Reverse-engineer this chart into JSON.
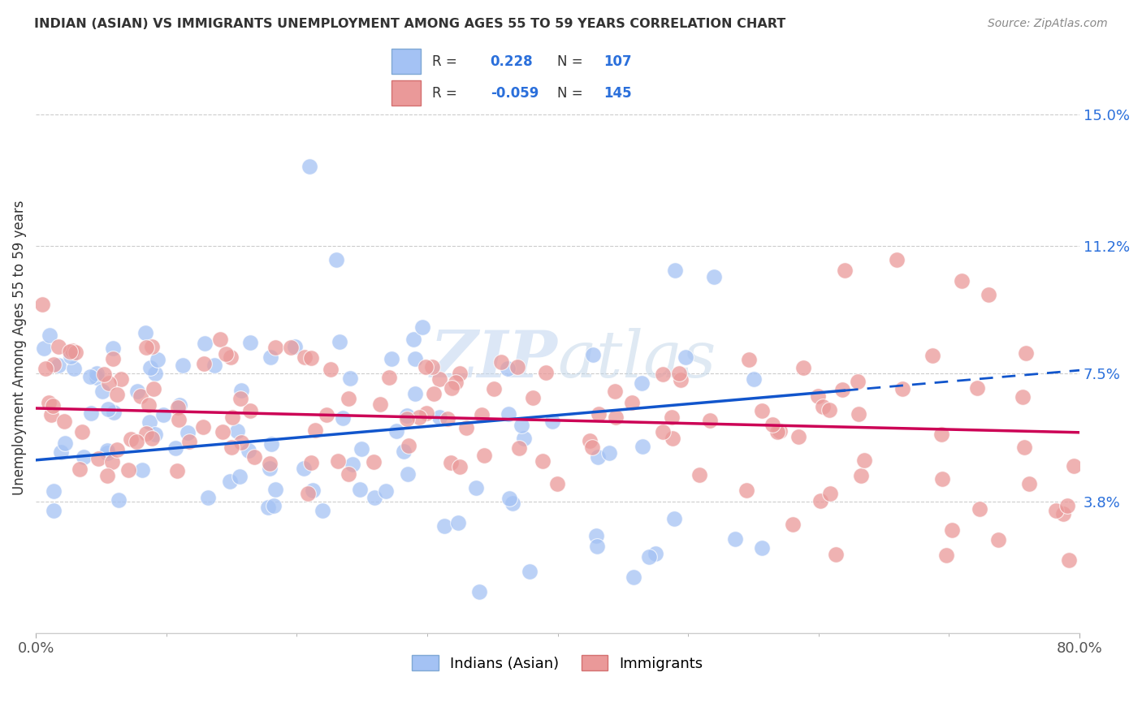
{
  "title": "INDIAN (ASIAN) VS IMMIGRANTS UNEMPLOYMENT AMONG AGES 55 TO 59 YEARS CORRELATION CHART",
  "source": "Source: ZipAtlas.com",
  "ylabel": "Unemployment Among Ages 55 to 59 years",
  "ytick_labels": [
    "3.8%",
    "7.5%",
    "11.2%",
    "15.0%"
  ],
  "ytick_values": [
    3.8,
    7.5,
    11.2,
    15.0
  ],
  "xlim": [
    0.0,
    80.0
  ],
  "ylim": [
    0.0,
    16.5
  ],
  "blue_R": 0.228,
  "blue_N": 107,
  "pink_R": -0.059,
  "pink_N": 145,
  "blue_color": "#a4c2f4",
  "pink_color": "#ea9999",
  "trend_blue_color": "#1155cc",
  "trend_pink_color": "#cc0055",
  "legend_label_blue": "Indians (Asian)",
  "legend_label_pink": "Immigrants",
  "watermark_text": "ZIPatlas",
  "background_color": "#ffffff",
  "blue_trend_start_y": 5.0,
  "blue_trend_end_y": 7.6,
  "pink_trend_start_y": 6.5,
  "pink_trend_end_y": 5.8
}
